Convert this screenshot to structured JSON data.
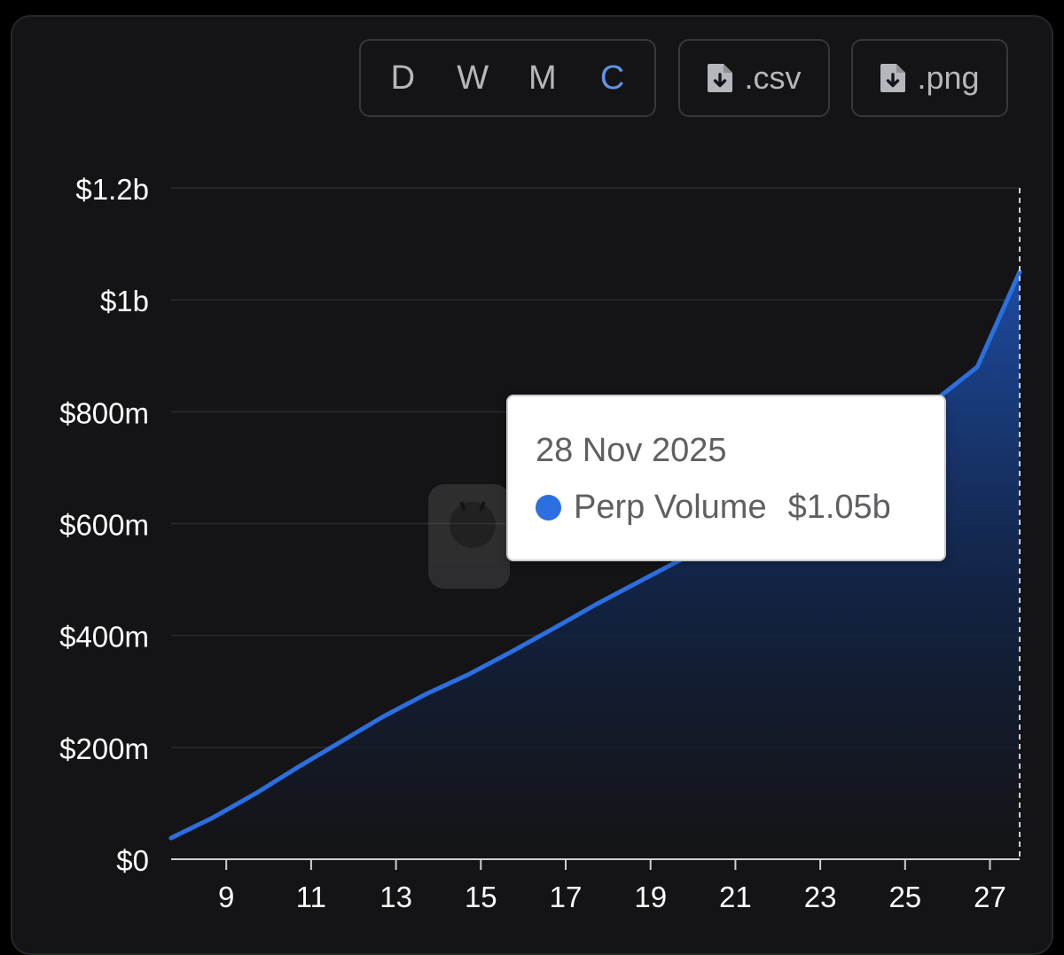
{
  "toolbar": {
    "periods": [
      "D",
      "W",
      "M",
      "C"
    ],
    "active_period": "C",
    "csv_label": ".csv",
    "png_label": ".png"
  },
  "tooltip": {
    "date": "28 Nov 2025",
    "series": "Perp Volume",
    "value": "$1.05b"
  },
  "colors": {
    "line": "#2b6fe0",
    "active_tab": "#5f93e6",
    "background": "#141416"
  },
  "chart_data": {
    "type": "area",
    "title": "",
    "xlabel": "",
    "ylabel": "",
    "x_ticks": [
      "9",
      "11",
      "13",
      "15",
      "17",
      "19",
      "21",
      "23",
      "25",
      "27"
    ],
    "y_ticks": [
      "$0",
      "$200m",
      "$400m",
      "$600m",
      "$800m",
      "$1b",
      "$1.2b"
    ],
    "ylim": [
      0,
      1200000000
    ],
    "xlim": [
      7.7,
      27.7
    ],
    "grid": "horizontal",
    "series": [
      {
        "name": "Perp Volume",
        "x": [
          7.7,
          8.7,
          9.7,
          10.7,
          11.7,
          12.7,
          13.7,
          14.7,
          15.7,
          16.7,
          17.7,
          18.7,
          19.7,
          20.7,
          21.7,
          22.7,
          23.7,
          24.7,
          25.7,
          26.7,
          27.7
        ],
        "values": [
          38000000,
          75000000,
          118000000,
          165000000,
          210000000,
          255000000,
          295000000,
          330000000,
          370000000,
          412000000,
          455000000,
          495000000,
          535000000,
          575000000,
          615000000,
          660000000,
          710000000,
          760000000,
          820000000,
          880000000,
          1050000000
        ]
      }
    ]
  }
}
